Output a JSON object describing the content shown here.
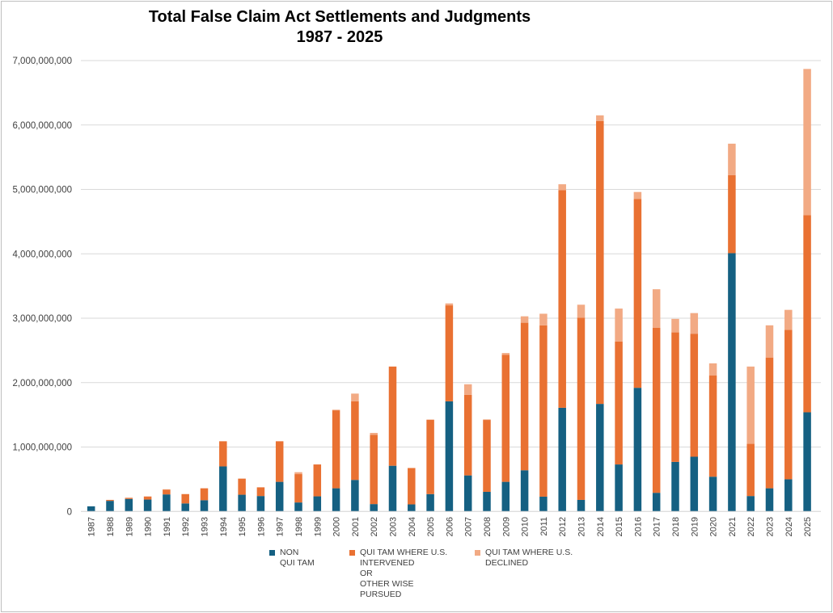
{
  "chart_data": {
    "type": "bar",
    "stacked": true,
    "title": "Total False Claim Act Settlements and Judgments",
    "subtitle": "1987 - 2025",
    "xlabel": "",
    "ylabel": "",
    "ylim": [
      0,
      7000000000
    ],
    "yticks": [
      "0",
      "1,000,000,000",
      "2,000,000,000",
      "3,000,000,000",
      "4,000,000,000",
      "5,000,000,000",
      "6,000,000,000",
      "7,000,000,000"
    ],
    "grid": true,
    "legend_position": "bottom",
    "categories": [
      "1987",
      "1988",
      "1989",
      "1990",
      "1991",
      "1992",
      "1993",
      "1994",
      "1995",
      "1996",
      "1997",
      "1998",
      "1999",
      "2000",
      "2001",
      "2002",
      "2003",
      "2004",
      "2005",
      "2006",
      "2007",
      "2008",
      "2009",
      "2010",
      "2011",
      "2012",
      "2013",
      "2014",
      "2015",
      "2016",
      "2017",
      "2018",
      "2019",
      "2020",
      "2021",
      "2022",
      "2023",
      "2024",
      "2025"
    ],
    "series": [
      {
        "name": "NON\nQUI TAM",
        "color": "#156082",
        "values": [
          80000000.0,
          165000000.0,
          195000000.0,
          185000000.0,
          265000000.0,
          125000000.0,
          175000000.0,
          700000000.0,
          260000000.0,
          240000000.0,
          460000000.0,
          140000000.0,
          235000000.0,
          360000000.0,
          490000000.0,
          115000000.0,
          710000000.0,
          110000000.0,
          270000000.0,
          1710000000.0,
          560000000.0,
          305000000.0,
          460000000.0,
          640000000.0,
          230000000.0,
          1610000000.0,
          180000000.0,
          1670000000.0,
          730000000.0,
          1920000000.0,
          290000000.0,
          770000000.0,
          850000000.0,
          540000000.0,
          4010000000.0,
          240000000.0,
          360000000.0,
          500000000.0,
          1540000000.0
        ]
      },
      {
        "name": "QUI TAM WHERE U.S.\nINTERVENED\nOR\nOTHER WISE\nPURSUED",
        "color": "#E97132",
        "values": [
          0,
          15000000.0,
          15000000.0,
          45000000.0,
          75000000.0,
          145000000.0,
          185000000.0,
          390000000.0,
          250000000.0,
          135000000.0,
          630000000.0,
          440000000.0,
          495000000.0,
          1210000000.0,
          1220000000.0,
          1075000000.0,
          1540000000.0,
          560000000.0,
          1155000000.0,
          1490000000.0,
          1250000000.0,
          1115000000.0,
          1970000000.0,
          2290000000.0,
          2660000000.0,
          3380000000.0,
          2830000000.0,
          4390000000.0,
          1910000000.0,
          2930000000.0,
          2560000000.0,
          2010000000.0,
          1910000000.0,
          1570000000.0,
          1210000000.0,
          810000000.0,
          2030000000.0,
          2320000000.0,
          3060000000.0
        ]
      },
      {
        "name": "QUI TAM WHERE U.S.\nDECLINED",
        "color": "#F2AA84",
        "values": [
          0,
          0,
          5000000.0,
          5000000.0,
          5000000.0,
          0,
          0,
          0,
          0,
          0,
          0,
          30000000.0,
          0,
          10000000.0,
          120000000.0,
          30000000.0,
          0,
          10000000.0,
          0,
          30000000.0,
          165000000.0,
          10000000.0,
          30000000.0,
          100000000.0,
          180000000.0,
          90000000.0,
          200000000.0,
          90000000.0,
          510000000.0,
          110000000.0,
          600000000.0,
          210000000.0,
          320000000.0,
          190000000.0,
          490000000.0,
          1200000000.0,
          500000000.0,
          310000000.0,
          2270000000.0
        ]
      }
    ]
  }
}
